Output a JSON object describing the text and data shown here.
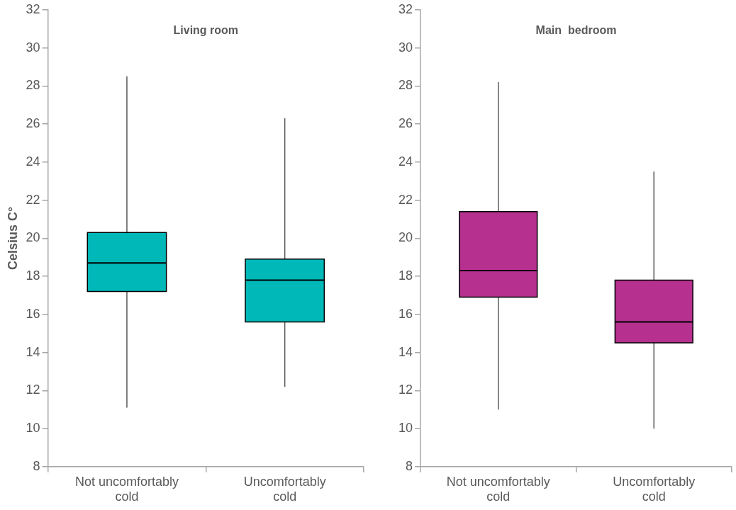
{
  "chart_data": [
    {
      "type": "box",
      "title": "Living room",
      "ylabel": "Celsius C°",
      "categories": [
        "Not uncomfortably cold",
        "Uncomfortably cold"
      ],
      "color": "#00b8b8",
      "boxes": [
        {
          "low": 11.1,
          "q1": 17.2,
          "median": 18.7,
          "q3": 20.3,
          "high": 28.5
        },
        {
          "low": 12.2,
          "q1": 15.6,
          "median": 17.8,
          "q3": 18.9,
          "high": 26.3
        }
      ],
      "ylim": [
        8,
        32
      ],
      "yticks": [
        8,
        10,
        12,
        14,
        16,
        18,
        20,
        22,
        24,
        26,
        28,
        30,
        32
      ],
      "grid": false,
      "legend": false
    },
    {
      "type": "box",
      "title": "Main  bedroom",
      "categories": [
        "Not uncomfortably cold",
        "Uncomfortably cold"
      ],
      "color": "#b5308f",
      "boxes": [
        {
          "low": 11.0,
          "q1": 16.9,
          "median": 18.3,
          "q3": 21.4,
          "high": 28.2
        },
        {
          "low": 10.0,
          "q1": 14.5,
          "median": 15.6,
          "q3": 17.8,
          "high": 23.5
        }
      ],
      "ylim": [
        8,
        32
      ],
      "yticks": [
        8,
        10,
        12,
        14,
        16,
        18,
        20,
        22,
        24,
        26,
        28,
        30,
        32
      ],
      "grid": false,
      "legend": false
    }
  ]
}
